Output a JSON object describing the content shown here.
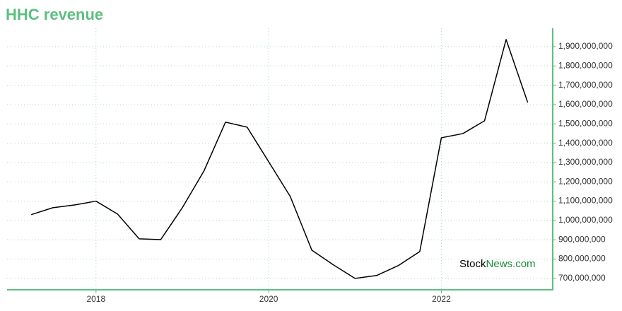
{
  "chart_data": {
    "type": "line",
    "title": "HHC revenue",
    "x": [
      2017.25,
      2017.5,
      2017.75,
      2018,
      2018.25,
      2018.5,
      2018.75,
      2019,
      2019.25,
      2019.5,
      2019.75,
      2020,
      2020.25,
      2020.5,
      2020.75,
      2021,
      2021.25,
      2021.5,
      2021.75,
      2022,
      2022.25,
      2022.5,
      2022.75,
      2023
    ],
    "series": [
      {
        "name": "HHC revenue",
        "color": "#000000",
        "values": [
          1030000000,
          1066000000,
          1080000000,
          1100000000,
          1033000000,
          905000000,
          901000000,
          1066000000,
          1256000000,
          1509000000,
          1483000000,
          1304000000,
          1124000000,
          846000000,
          770000000,
          700000000,
          715000000,
          766000000,
          839000000,
          1428000000,
          1450000000,
          1516000000,
          1937000000,
          1611000000
        ]
      }
    ],
    "xlim": [
      2016.97,
      2023.29
    ],
    "xticks": [
      2018,
      2020,
      2022
    ],
    "ylim": [
      641000000,
      1995000000
    ],
    "yticks": [
      {
        "value": 700000000,
        "label": "700,000,000"
      },
      {
        "value": 800000000,
        "label": "800,000,000"
      },
      {
        "value": 900000000,
        "label": "900,000,000"
      },
      {
        "value": 1000000000,
        "label": "1,000,000,000"
      },
      {
        "value": 1100000000,
        "label": "1,100,000,000"
      },
      {
        "value": 1200000000,
        "label": "1,200,000,000"
      },
      {
        "value": 1300000000,
        "label": "1,300,000,000"
      },
      {
        "value": 1400000000,
        "label": "1,400,000,000"
      },
      {
        "value": 1500000000,
        "label": "1,500,000,000"
      },
      {
        "value": 1600000000,
        "label": "1,600,000,000"
      },
      {
        "value": 1700000000,
        "label": "1,700,000,000"
      },
      {
        "value": 1800000000,
        "label": "1,800,000,000"
      },
      {
        "value": 1900000000,
        "label": "1,900,000,000"
      }
    ],
    "grid": true,
    "axis_color": "#5cbf7f",
    "watermark": [
      "Stock",
      "News",
      ".com"
    ]
  }
}
